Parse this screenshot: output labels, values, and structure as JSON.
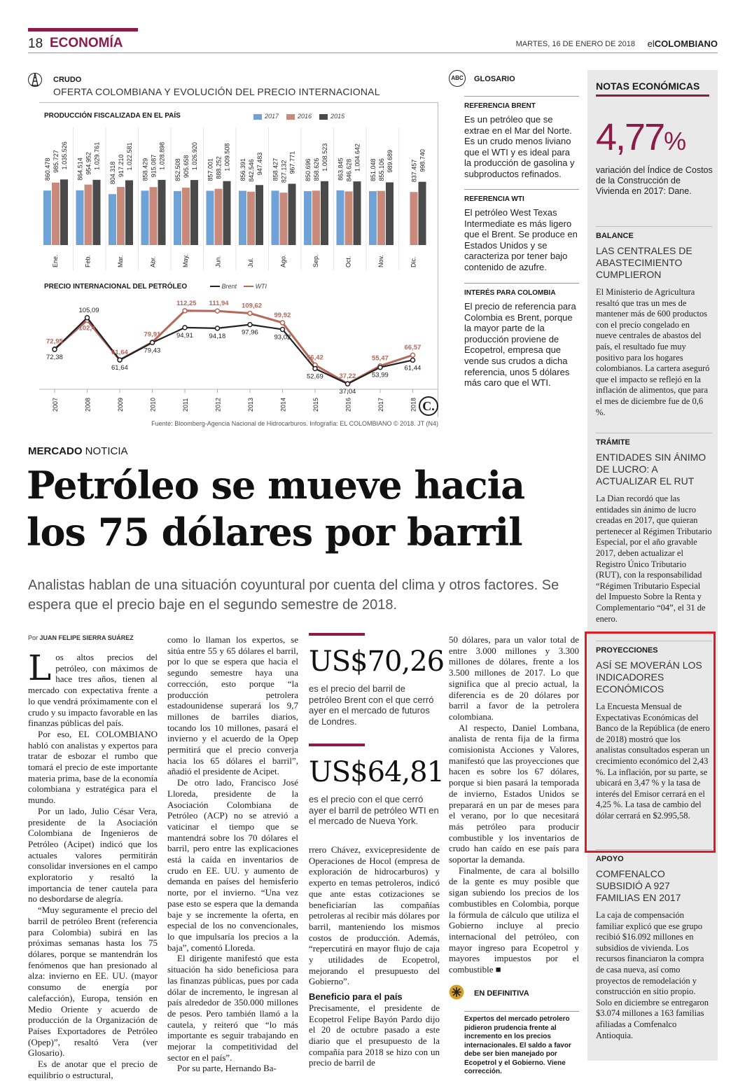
{
  "header": {
    "page_number": "18",
    "section": "ECONOMÍA",
    "date": "MARTES, 16 DE ENERO DE 2018",
    "brand_el": "el",
    "brand_name": "COLOMBIANO"
  },
  "infographic": {
    "label": "CRUDO",
    "title": "OFERTA COLOMBIANA Y EVOLUCIÓN DEL PRECIO INTERNACIONAL",
    "source": "Fuente: Bloomberg-Agencia Nacional de Hidrocarburos. Infografía: EL COLOMBIANO © 2018. JT (N4)",
    "logo": "C."
  },
  "chart_data": [
    {
      "type": "bar",
      "title": "PRODUCCIÓN FISCALIZADA EN EL PAÍS",
      "categories": [
        "Ene.",
        "Feb.",
        "Mar.",
        "Abr.",
        "May.",
        "Jun.",
        "Jul.",
        "Ago.",
        "Sep.",
        "Oct.",
        "Nov.",
        "Dic."
      ],
      "series": [
        {
          "name": "2017",
          "color": "#6fa3d8",
          "values": [
            860478,
            864514,
            804318,
            858429,
            852508,
            857001,
            856391,
            858427,
            850696,
            863845,
            851048,
            null
          ],
          "labels": [
            "860.478",
            "864.514",
            "804.318",
            "858.429",
            "852.508",
            "857.001",
            "856.391",
            "858.427",
            "850.696",
            "863.845",
            "851.048",
            ""
          ]
        },
        {
          "name": "2016",
          "color": "#c98a7c",
          "values": [
            985727,
            954952,
            917210,
            915087,
            905658,
            888252,
            842546,
            827132,
            858626,
            846628,
            855106,
            837457
          ],
          "labels": [
            "985.727",
            "954.952",
            "917.210",
            "915.087",
            "905.658",
            "888.252",
            "842.546",
            "827.132",
            "858.626",
            "846.628",
            "855.106",
            "837.457"
          ]
        },
        {
          "name": "2015",
          "color": "#4a4a4a",
          "values": [
            1035526,
            1029761,
            1022581,
            1028898,
            1026920,
            1009508,
            947483,
            967771,
            1008523,
            1004642,
            989689,
            998740
          ],
          "labels": [
            "1.035.526",
            "1.029.761",
            "1.022.581",
            "1.028.898",
            "1.026.920",
            "1.009.508",
            "947.483",
            "967.771",
            "1.008.523",
            "1.004.642",
            "989.689",
            "998.740"
          ]
        }
      ],
      "ylim": [
        0,
        1100000
      ]
    },
    {
      "type": "line",
      "title": "PRECIO INTERNACIONAL DEL PETRÓLEO",
      "x": [
        "2007",
        "2008",
        "2009",
        "2010",
        "2011",
        "2012",
        "2013",
        "2014",
        "2015",
        "2016",
        "2017",
        "2018"
      ],
      "series": [
        {
          "name": "Brent",
          "color": "#222222",
          "values": [
            72.38,
            105.09,
            61.64,
            79.43,
            94.91,
            94.18,
            97.96,
            93.02,
            52.69,
            37.04,
            53.99,
            61.44
          ],
          "labels": [
            "72,38",
            "105,09",
            "61,64",
            "79,43",
            "94,91",
            "94,18",
            "97,96",
            "93,02",
            "52,69",
            "37,04",
            "53,99",
            "61,44"
          ]
        },
        {
          "name": "WTI",
          "color": "#b5675a",
          "values": [
            72.95,
            102.4,
            61.64,
            79.91,
            112.25,
            111.94,
            109.62,
            99.92,
            56.42,
            37.22,
            55.47,
            66.57
          ],
          "labels": [
            "72,95",
            "102,4",
            "61,64",
            "79,91",
            "112,25",
            "111,94",
            "109,62",
            "99,92",
            "56,42",
            "37,22",
            "55,47",
            "66,57"
          ]
        }
      ]
    }
  ],
  "glosario": {
    "icon": "ABC",
    "title": "GLOSARIO",
    "items": [
      {
        "title": "REFERENCIA BRENT",
        "text": "Es un petróleo que se extrae en el Mar del Norte. Es un crudo menos liviano que el WTI y es ideal para la producción de gasolina y subproductos refinados."
      },
      {
        "title": "REFERENCIA WTI",
        "text": "El petróleo West Texas Intermediate es más ligero que el Brent. Se produce en Estados Unidos y se caracteriza por tener bajo contenido de azufre."
      },
      {
        "title": "INTERÉS PARA COLOMBIA",
        "text": "El precio de referencia para Colombia es Brent, porque la mayor parte de la producción proviene de Ecopetrol, empresa que vende sus crudos a dicha referencia, unos 5 dólares más caro que el WTI."
      }
    ]
  },
  "article": {
    "kicker_bold": "MERCADO",
    "kicker": " NOTICIA",
    "headline": "Petróleo se mueve hacia los 75 dólares por barril",
    "subhead": "Analistas hablan de una situación coyuntural por cuenta del clima y otros factores. Se espera que el precio baje en el segundo semestre de 2018.",
    "byline_pre": "Por ",
    "byline": "JUAN FELIPE SIERRA SUÁREZ",
    "dropcap": "L",
    "col1": [
      "os altos precios del petróleo, con máximos de hace tres años, tienen al mercado con expectativa frente a lo que vendrá próximamente con el crudo y su impacto favorable en las finanzas públicas del país.",
      "Por eso, EL COLOMBIANO habló con analistas y expertos para tratar de esbozar el rumbo que tomará el precio de este importante materia prima, base de la economía colombiana y estratégica para el mundo.",
      "Por un lado, Julio César Vera, presidente de la Asociación Colombiana de Ingenieros de Petróleo (Acipet) indicó que los actuales valores permitirán consolidar inversiones en el campo exploratorio y resaltó la importancia de tener cautela para no desbordarse de alegría.",
      "“Muy seguramente el precio del barril de petróleo Brent (referencia para Colombia) subirá en las próximas semanas hasta los 75 dólares, porque se mantendrán los fenómenos que han presionado al alza: invierno en EE. UU. (mayor consumo de energía por calefacción), Europa, tensión en Medio Oriente y acuerdo de producción de la Organización de Países Exportadores de Petróleo (Opep)”, resaltó Vera (ver Glosario).",
      "Es de anotar que el precio de equilibrio o estructural,"
    ],
    "col2": [
      "como lo llaman los expertos, se sitúa entre 55 y 65 dólares el barril, por lo que se espera que hacia el segundo semestre haya una corrección, esto porque “la producción petrolera estadounidense superará los 9,7 millones de barriles diarios, tocando los 10 millones, pasará el invierno y el acuerdo de la Opep permitirá que el precio converja hacia los 65 dólares el barril”, añadió el presidente de Acipet.",
      "De otro lado, Francisco José Lloreda, presidente de la Asociación Colombiana de Petróleo (ACP) no se atrevió a vaticinar el tiempo que se mantendrá sobre los 70 dólares el barril, pero entre las explicaciones está la caída en inventarios de crudo en EE. UU. y aumento de demanda en países del hemisferio norte, por el invierno. “Una vez pase esto se espera que la demanda baje y se incremente la oferta, en especial de los no convencionales, lo que impulsaría los precios a la baja”, comentó Lloreda.",
      "El dirigente manifestó que esta situación ha sido beneficiosa para las finanzas públicas, pues por cada dólar de incremento, le ingresan al país alrededor de 350.000 millones de pesos. Pero también llamó a la cautela, y reiteró que “lo más importante es seguir trabajando en mejorar la competitividad del sector en el país”.",
      "Por su parte, Hernando Ba-"
    ],
    "pq1_num": "US$70,26",
    "pq1_text": "es el precio del barril de petróleo Brent con el que cerró ayer en el mercado de futuros de Londres.",
    "pq2_num": "US$64,81",
    "pq2_text": "es el precio con el que cerró ayer el barril de petróleo WTI en el mercado de Nueva York.",
    "col3a": "rrero Chávez, exvicepresidente de Operaciones de Hocol (empresa de exploración de hidrocarburos) y experto en temas petroleros, indicó que ante estas cotizaciones se beneficiarían las compañías petroleras al recibir más dólares por barril, manteniendo los mismos costos de producción. Además, “repercutirá en mayor flujo de caja y utilidades de Ecopetrol, mejorando el presupuesto del Gobierno”.",
    "col3_subhead": "Beneficio para el país",
    "col3b": "Precisamente, el presidente de Ecopetrol Felipe Bayón Pardo dijo el 20 de octubre pasado a este diario que el presupuesto de la compañía para 2018 se hizo con un precio de barril de",
    "col4": [
      "50 dólares, para un valor total de entre 3.000 millones y 3.300 millones de dólares, frente a los 3.500 millones de 2017. Lo que significa que al precio actual, la diferencia es de 20 dólares por barril a favor de la petrolera colombiana.",
      "Al respecto, Daniel Lombana, analista de renta fija de la firma comisionista Acciones y Valores, manifestó que las proyecciones que hacen es sobre los 67 dólares, porque si bien pasará la temporada de invierno, Estados Unidos se preparará en un par de meses para el verano, por lo que necesitará más petróleo para producir combustible y los inventarios de crudo han caído en ese país para soportar la demanda.",
      "Finalmente, de cara al bolsillo de la gente es muy posible que sigan subiendo los precios de los combustibles en Colombia, porque la fórmula de cálculo que utiliza el Gobierno incluye al precio internacional del petróleo, con mayor ingreso para Ecopetrol y mayores impuestos por el combustible ■"
    ]
  },
  "definitiva": {
    "title": "EN DEFINITIVA",
    "text": "Expertos del mercado petrolero pidieron prudencia frente al incremento en los precios internacionales. El saldo a favor debe ser bien manejado por Ecopetrol y el Gobierno. Viene corrección."
  },
  "sidebar": {
    "title": "NOTAS ECONÓMICAS",
    "big_number": "4,77",
    "big_unit": "%",
    "big_desc": "variación del Índice de Costos de la Construcción de Vivienda en 2017: Dane.",
    "items": [
      {
        "label": "BALANCE",
        "head": "LAS CENTRALES DE ABASTECIMIENTO CUMPLIERON",
        "body": "El Ministerio de Agricultura resaltó que tras un mes de mantener más de 600 productos con el precio congelado en nueve centrales de abastos del país, el resultado fue muy positivo para los hogares colombianos. La cartera aseguró que el impacto se reflejó en la inflación de alimentos, que para el mes de diciembre fue de 0,6 %."
      },
      {
        "label": "TRÁMITE",
        "head": "ENTIDADES SIN ÁNIMO DE LUCRO: A ACTUALIZAR EL RUT",
        "body": "La Dian recordó que las entidades sin ánimo de lucro creadas en 2017, que quieran pertenecer al Régimen Tributario Especial, por el año gravable 2017, deben actualizar el Registro Único Tributario (RUT), con la responsabilidad “Régimen Tributario Especial del Impuesto Sobre la Renta y Complementario “04”, el 31 de enero."
      },
      {
        "label": "PROYECCIONES",
        "head": "ASÍ SE MOVERÁN LOS INDICADORES ECONÓMICOS",
        "body": "La Encuesta Mensual de Expectativas Económicas del Banco de la República (de enero de 2018) mostró que los analistas consultados esperan un crecimiento económico del 2,43 %. La inflación, por su parte, se ubicará en 3,47 % y la tasa de interés del Emisor cerrará en el 4,25 %. La tasa de cambio del dólar cerrará en $2.995,58."
      },
      {
        "label": "APOYO",
        "head": "COMFENALCO SUBSIDIÓ A 927 FAMILIAS EN 2017",
        "body": "La caja de compensación familiar explicó que ese grupo recibió $16.092 millones en subsidios de vivienda. Los recursos financiaron la compra de casa nueva, así como proyectos de remodelación y construcción en sitio propio. Solo en diciembre se entregaron $3.074 millones a 163 familias afiliadas a Comfenalco Antioquia."
      }
    ]
  }
}
